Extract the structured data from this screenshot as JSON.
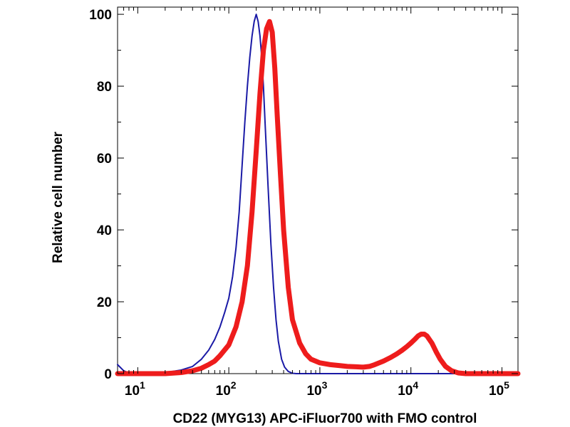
{
  "chart_data": {
    "type": "line",
    "title": "",
    "xlabel": "CD22 (MYG13) APC-iFluor700 with FMO control",
    "ylabel": "Relative cell number",
    "xscale": "log",
    "xlim": [
      6,
      150000
    ],
    "ylim": [
      0,
      102
    ],
    "grid": false,
    "x_ticks": [
      {
        "value": 10,
        "base": "10",
        "exp": "1"
      },
      {
        "value": 100,
        "base": "10",
        "exp": "2"
      },
      {
        "value": 1000,
        "base": "10",
        "exp": "3"
      },
      {
        "value": 10000,
        "base": "10",
        "exp": "4"
      },
      {
        "value": 100000,
        "base": "10",
        "exp": "5"
      }
    ],
    "y_ticks": [
      "0",
      "20",
      "40",
      "60",
      "80",
      "100"
    ],
    "series": [
      {
        "name": "FMO control",
        "color": "#1a1aa6",
        "x": [
          6,
          7,
          8,
          10,
          15,
          20,
          30,
          40,
          50,
          60,
          70,
          80,
          90,
          100,
          110,
          120,
          130,
          140,
          150,
          160,
          170,
          180,
          190,
          200,
          210,
          220,
          230,
          240,
          250,
          270,
          290,
          310,
          330,
          350,
          380,
          410,
          450,
          500,
          550,
          700,
          1000,
          10000,
          150000
        ],
        "y": [
          2.5,
          0.8,
          0.2,
          0,
          0,
          0.3,
          1,
          2,
          4,
          6.5,
          9.5,
          13,
          17,
          21,
          27,
          35,
          45,
          58,
          70,
          80,
          88,
          94,
          98,
          100,
          98,
          94,
          88,
          80,
          70,
          52,
          36,
          24,
          15,
          9,
          4,
          1.8,
          0.6,
          0.1,
          0,
          0,
          0,
          0,
          0
        ]
      },
      {
        "name": "CD22 (MYG13) APC-iFluor700",
        "color": "#ee1c1c",
        "x": [
          6,
          8,
          10,
          15,
          20,
          30,
          40,
          50,
          60,
          70,
          80,
          100,
          120,
          140,
          160,
          180,
          200,
          220,
          240,
          260,
          280,
          300,
          320,
          340,
          370,
          400,
          450,
          500,
          600,
          700,
          800,
          1000,
          1300,
          1700,
          2000,
          2500,
          3000,
          3500,
          4000,
          5000,
          6000,
          7000,
          8000,
          9000,
          10000,
          11000,
          12000,
          13000,
          14000,
          15000,
          17000,
          19000,
          21000,
          24000,
          28000,
          33000,
          40000,
          60000,
          100000,
          150000
        ],
        "y": [
          0,
          0,
          0,
          0,
          0,
          0.3,
          0.8,
          1.5,
          2.5,
          3.5,
          5,
          8,
          13,
          20,
          30,
          45,
          62,
          78,
          90,
          96,
          98,
          95,
          85,
          72,
          55,
          40,
          24,
          15,
          8.5,
          5.5,
          4,
          3,
          2.5,
          2.2,
          2,
          1.9,
          1.8,
          2,
          2.5,
          3.5,
          4.5,
          5.5,
          6.5,
          7.5,
          8.5,
          9.5,
          10.5,
          11,
          11,
          10.5,
          8.5,
          6,
          4,
          2,
          0.8,
          0.2,
          0,
          0,
          0,
          0
        ]
      }
    ]
  }
}
